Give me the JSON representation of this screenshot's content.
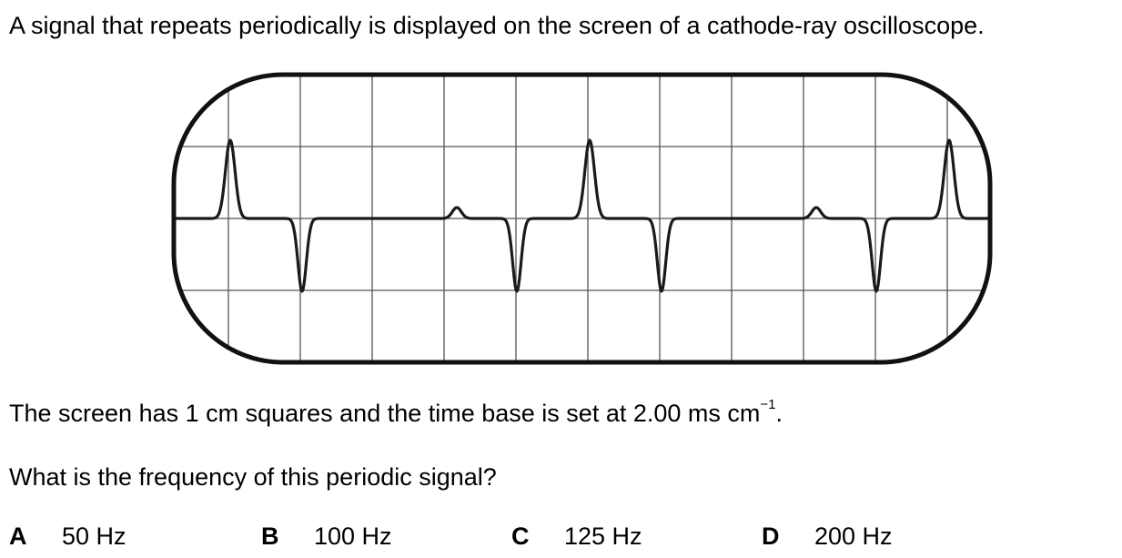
{
  "question": {
    "intro": "A signal that repeats periodically is displayed on the screen of a cathode-ray oscilloscope.",
    "screen_info_prefix": "The screen has 1 cm squares and the time base is set at 2.00 ms cm",
    "screen_info_exponent": "−1",
    "screen_info_suffix": ".",
    "prompt": "What is the frequency of this periodic signal?"
  },
  "options": [
    {
      "letter": "A",
      "value": "50 Hz"
    },
    {
      "letter": "B",
      "value": "100 Hz"
    },
    {
      "letter": "C",
      "value": "125 Hz"
    },
    {
      "letter": "D",
      "value": "200 Hz"
    }
  ],
  "figure": {
    "grid_columns": 11,
    "grid_rows": 4,
    "signal_period_squares": 5,
    "trace_color": "#1a1a1a",
    "grid_color": "#555555"
  }
}
